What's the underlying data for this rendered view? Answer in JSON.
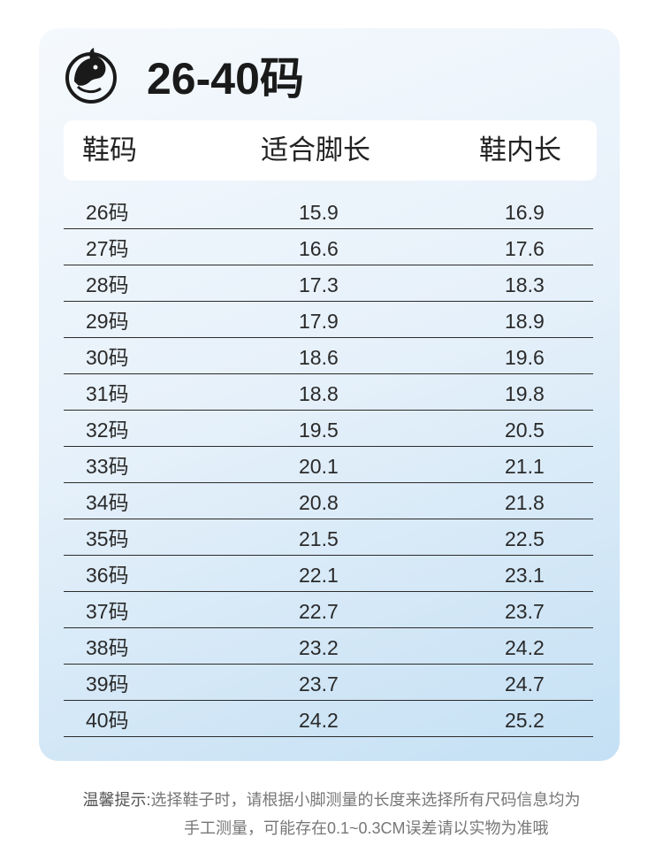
{
  "title": "26-40码",
  "logo_icon": "horse-head-logo-icon",
  "table": {
    "headers": [
      "鞋码",
      "适合脚长",
      "鞋内长"
    ],
    "rows": [
      [
        "26码",
        "15.9",
        "16.9"
      ],
      [
        "27码",
        "16.6",
        "17.6"
      ],
      [
        "28码",
        "17.3",
        "18.3"
      ],
      [
        "29码",
        "17.9",
        "18.9"
      ],
      [
        "30码",
        "18.6",
        "19.6"
      ],
      [
        "31码",
        "18.8",
        "19.8"
      ],
      [
        "32码",
        "19.5",
        "20.5"
      ],
      [
        "33码",
        "20.1",
        "21.1"
      ],
      [
        "34码",
        "20.8",
        "21.8"
      ],
      [
        "35码",
        "21.5",
        "22.5"
      ],
      [
        "36码",
        "22.1",
        "23.1"
      ],
      [
        "37码",
        "22.7",
        "23.7"
      ],
      [
        "38码",
        "23.2",
        "24.2"
      ],
      [
        "39码",
        "23.7",
        "24.7"
      ],
      [
        "40码",
        "24.2",
        "25.2"
      ]
    ]
  },
  "note": {
    "lead": "温馨提示:",
    "line1": "选择鞋子时，请根据小脚测量的长度来选择所有尺码信息均为",
    "line2": "手工测量，可能存在0.1~0.3CM误差请以实物为准哦"
  },
  "colors": {
    "card_gradient_start": "#f5f9fd",
    "card_gradient_end": "#c4e0f4",
    "divider": "#2c2c2c"
  }
}
